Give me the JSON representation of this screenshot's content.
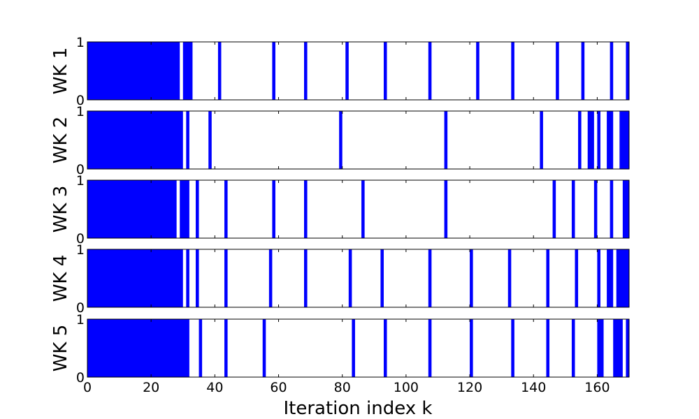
{
  "chart_data": {
    "type": "bar",
    "xlabel": "Iteration index k",
    "xlim": [
      0,
      170
    ],
    "x_ticks": [
      "0",
      "20",
      "40",
      "60",
      "80",
      "100",
      "120",
      "140",
      "160"
    ],
    "ylim": [
      0,
      1
    ],
    "y_ticks": [
      "0",
      "1"
    ],
    "bar_color": "#0000ff",
    "grid": false,
    "panels": [
      {
        "ylabel": "WK 1",
        "active_intervals": [
          [
            0,
            29
          ],
          [
            30,
            33
          ],
          [
            41,
            42
          ],
          [
            58,
            59
          ],
          [
            68,
            69
          ],
          [
            81,
            82
          ],
          [
            93,
            94
          ],
          [
            107,
            108
          ],
          [
            122,
            123
          ],
          [
            133,
            134
          ],
          [
            147,
            148
          ],
          [
            155,
            156
          ],
          [
            164,
            165
          ],
          [
            169,
            170
          ]
        ]
      },
      {
        "ylabel": "WK 2",
        "active_intervals": [
          [
            0,
            30
          ],
          [
            31,
            32
          ],
          [
            38,
            39
          ],
          [
            79,
            80
          ],
          [
            112,
            113
          ],
          [
            142,
            143
          ],
          [
            154,
            155
          ],
          [
            157,
            159
          ],
          [
            160,
            161
          ],
          [
            163,
            165
          ],
          [
            167,
            170
          ]
        ]
      },
      {
        "ylabel": "WK 3",
        "active_intervals": [
          [
            0,
            28
          ],
          [
            29,
            32
          ],
          [
            34,
            35
          ],
          [
            43,
            44
          ],
          [
            58,
            59
          ],
          [
            68,
            69
          ],
          [
            86,
            87
          ],
          [
            112,
            113
          ],
          [
            146,
            147
          ],
          [
            152,
            153
          ],
          [
            159,
            160
          ],
          [
            164,
            165
          ],
          [
            168,
            170
          ]
        ]
      },
      {
        "ylabel": "WK 4",
        "active_intervals": [
          [
            0,
            30
          ],
          [
            31,
            32
          ],
          [
            34,
            35
          ],
          [
            43,
            44
          ],
          [
            57,
            58
          ],
          [
            68,
            69
          ],
          [
            82,
            83
          ],
          [
            92,
            93
          ],
          [
            107,
            108
          ],
          [
            120,
            121
          ],
          [
            132,
            133
          ],
          [
            144,
            145
          ],
          [
            153,
            154
          ],
          [
            160,
            161
          ],
          [
            163,
            165
          ],
          [
            166,
            170
          ]
        ]
      },
      {
        "ylabel": "WK 5",
        "active_intervals": [
          [
            0,
            32
          ],
          [
            35,
            36
          ],
          [
            43,
            44
          ],
          [
            55,
            56
          ],
          [
            83,
            84
          ],
          [
            93,
            94
          ],
          [
            107,
            108
          ],
          [
            120,
            121
          ],
          [
            133,
            134
          ],
          [
            144,
            145
          ],
          [
            152,
            153
          ],
          [
            160,
            162
          ],
          [
            165,
            168
          ],
          [
            169,
            170
          ]
        ]
      }
    ]
  }
}
